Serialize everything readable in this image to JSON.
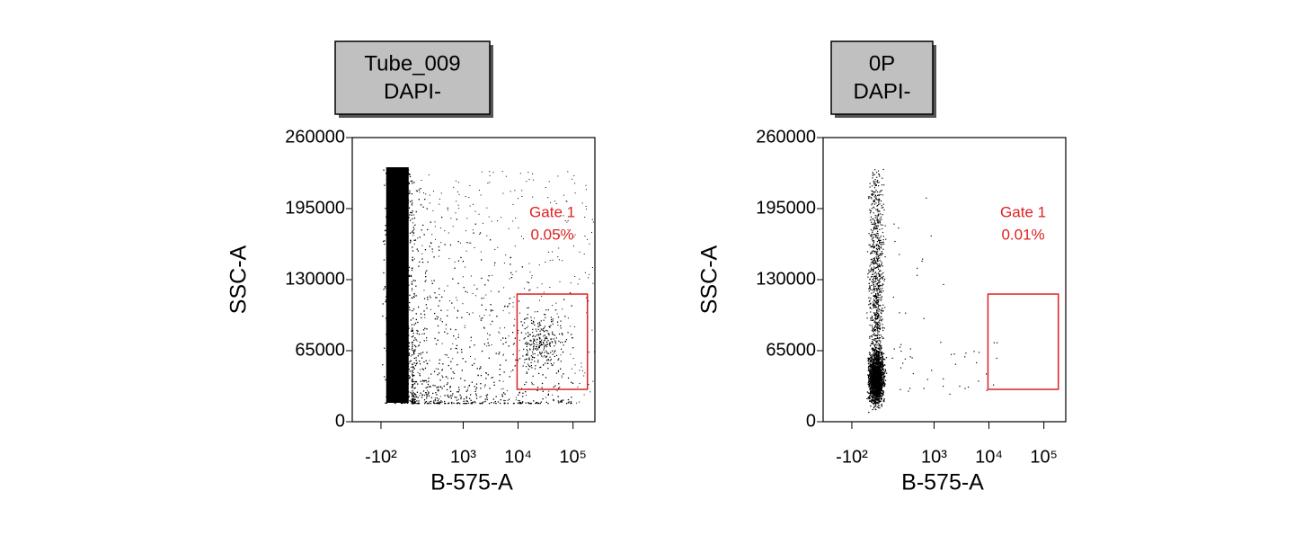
{
  "chart_data": [
    {
      "type": "scatter",
      "title": [
        "Tube_009",
        "DAPI-"
      ],
      "x_label": "B-575-A",
      "y_label": "SSC-A",
      "x_scale": "biexponential",
      "xlim": [
        -430,
        250000
      ],
      "xticks": [
        {
          "value": -100,
          "label": "-10²"
        },
        {
          "value": 1000,
          "label": "10³"
        },
        {
          "value": 10000,
          "label": "10⁴"
        },
        {
          "value": 100000,
          "label": "10⁵"
        }
      ],
      "ylim": [
        0,
        260000
      ],
      "yticks": [
        0,
        65000,
        130000,
        195000,
        260000
      ],
      "gate": {
        "name": "Gate 1",
        "percent": "0.05%",
        "color": "#e02020",
        "x": [
          9600,
          183000
        ],
        "y": [
          29600,
          116800
        ]
      }
    },
    {
      "type": "scatter",
      "title": [
        "0P",
        "DAPI-"
      ],
      "x_label": "B-575-A",
      "y_label": "SSC-A",
      "x_scale": "biexponential",
      "xlim": [
        -430,
        250000
      ],
      "xticks": [
        {
          "value": -100,
          "label": "-10²"
        },
        {
          "value": 1000,
          "label": "10³"
        },
        {
          "value": 10000,
          "label": "10⁴"
        },
        {
          "value": 100000,
          "label": "10⁵"
        }
      ],
      "ylim": [
        0,
        260000
      ],
      "yticks": [
        0,
        65000,
        130000,
        195000,
        260000
      ],
      "gate": {
        "name": "Gate 1",
        "percent": "0.01%",
        "color": "#e02020",
        "x": [
          9600,
          183000
        ],
        "y": [
          29600,
          116800
        ]
      }
    }
  ]
}
